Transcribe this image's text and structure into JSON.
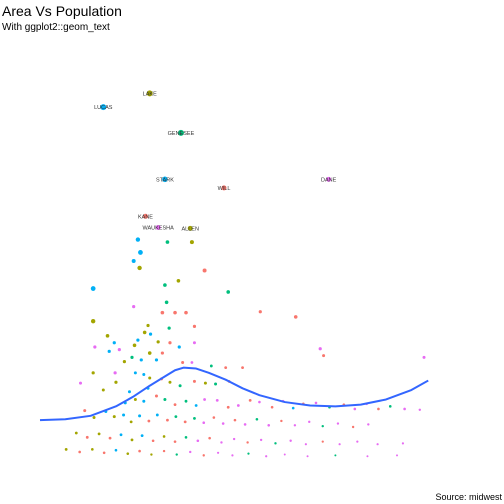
{
  "chart_data": {
    "type": "scatter",
    "title": "Area Vs Population",
    "subtitle": "With ggplot2::geom_text",
    "caption": "Source: midwest",
    "xlabel": "",
    "ylabel": "",
    "legend": "none",
    "grid": false,
    "xlim": [
      0,
      100
    ],
    "ylim": [
      0,
      100
    ],
    "colors": {
      "IL": "#F8766D",
      "IN": "#A3A500",
      "MI": "#00BF7D",
      "OH": "#00B0F6",
      "WI": "#E76BF3",
      "smooth": "#3366FF"
    },
    "labeled_points": [
      {
        "label": "LAKE",
        "x": 26.0,
        "y": 87.6,
        "state": "IN",
        "size": 3.0
      },
      {
        "label": "LUCAS",
        "x": 15.0,
        "y": 84.4,
        "state": "OH",
        "size": 3.0
      },
      {
        "label": "GENESEE",
        "x": 33.4,
        "y": 78.4,
        "state": "MI",
        "size": 3.0
      },
      {
        "label": "STARK",
        "x": 29.6,
        "y": 67.6,
        "state": "OH",
        "size": 2.8
      },
      {
        "label": "WILL",
        "x": 43.6,
        "y": 65.6,
        "state": "IL",
        "size": 2.5
      },
      {
        "label": "DANE",
        "x": 68.4,
        "y": 67.6,
        "state": "WI",
        "size": 2.5
      },
      {
        "label": "KANE",
        "x": 25.0,
        "y": 59.0,
        "state": "IL",
        "size": 2.5
      },
      {
        "label": "WAUKESHA",
        "x": 28.0,
        "y": 56.4,
        "state": "WI",
        "size": 2.5
      },
      {
        "label": "ALLEN",
        "x": 35.6,
        "y": 56.2,
        "state": "IN",
        "size": 2.5
      }
    ],
    "points": [
      {
        "x": 23.2,
        "y": 53.6,
        "state": "OH",
        "size": 2.2
      },
      {
        "x": 23.8,
        "y": 50.6,
        "state": "OH",
        "size": 2.4
      },
      {
        "x": 23.6,
        "y": 47.0,
        "state": "IN",
        "size": 2.2
      },
      {
        "x": 22.2,
        "y": 48.6,
        "state": "OH",
        "size": 2.0
      },
      {
        "x": 30.2,
        "y": 53.0,
        "state": "MI",
        "size": 1.8
      },
      {
        "x": 36.0,
        "y": 53.0,
        "state": "IN",
        "size": 2.0
      },
      {
        "x": 39.0,
        "y": 46.4,
        "state": "IL",
        "size": 2.0
      },
      {
        "x": 29.6,
        "y": 43.0,
        "state": "MI",
        "size": 1.8
      },
      {
        "x": 32.8,
        "y": 44.0,
        "state": "IN",
        "size": 1.8
      },
      {
        "x": 44.6,
        "y": 41.4,
        "state": "MI",
        "size": 1.8
      },
      {
        "x": 12.6,
        "y": 42.2,
        "state": "OH",
        "size": 2.4
      },
      {
        "x": 12.6,
        "y": 34.6,
        "state": "IN",
        "size": 2.2
      },
      {
        "x": 30.0,
        "y": 39.0,
        "state": "MI",
        "size": 1.8
      },
      {
        "x": 29.0,
        "y": 36.6,
        "state": "IL",
        "size": 1.8
      },
      {
        "x": 32.0,
        "y": 36.6,
        "state": "IL",
        "size": 1.8
      },
      {
        "x": 34.6,
        "y": 36.6,
        "state": "IL",
        "size": 1.8
      },
      {
        "x": 22.2,
        "y": 38.0,
        "state": "WI",
        "size": 1.6
      },
      {
        "x": 52.2,
        "y": 36.8,
        "state": "IL",
        "size": 1.6
      },
      {
        "x": 60.6,
        "y": 35.6,
        "state": "IL",
        "size": 1.8
      },
      {
        "x": 36.6,
        "y": 33.4,
        "state": "IL",
        "size": 1.6
      },
      {
        "x": 30.6,
        "y": 33.0,
        "state": "MI",
        "size": 1.6
      },
      {
        "x": 24.8,
        "y": 32.0,
        "state": "IN",
        "size": 1.8
      },
      {
        "x": 25.6,
        "y": 33.6,
        "state": "IN",
        "size": 1.6
      },
      {
        "x": 23.2,
        "y": 30.2,
        "state": "OH",
        "size": 1.6
      },
      {
        "x": 26.2,
        "y": 31.6,
        "state": "OH",
        "size": 1.6
      },
      {
        "x": 22.4,
        "y": 29.0,
        "state": "IN",
        "size": 1.8
      },
      {
        "x": 28.0,
        "y": 29.8,
        "state": "IN",
        "size": 1.6
      },
      {
        "x": 30.8,
        "y": 29.6,
        "state": "IL",
        "size": 1.6
      },
      {
        "x": 33.0,
        "y": 28.6,
        "state": "OH",
        "size": 1.6
      },
      {
        "x": 36.6,
        "y": 29.6,
        "state": "WI",
        "size": 1.5
      },
      {
        "x": 16.0,
        "y": 31.2,
        "state": "IN",
        "size": 1.8
      },
      {
        "x": 17.6,
        "y": 29.6,
        "state": "OH",
        "size": 1.6
      },
      {
        "x": 16.4,
        "y": 27.6,
        "state": "OH",
        "size": 1.6
      },
      {
        "x": 18.8,
        "y": 28.0,
        "state": "WI",
        "size": 1.6
      },
      {
        "x": 13.0,
        "y": 28.6,
        "state": "WI",
        "size": 1.6
      },
      {
        "x": 26.0,
        "y": 27.2,
        "state": "IN",
        "size": 1.8
      },
      {
        "x": 29.0,
        "y": 27.2,
        "state": "IL",
        "size": 1.6
      },
      {
        "x": 27.6,
        "y": 25.6,
        "state": "OH",
        "size": 1.6
      },
      {
        "x": 21.8,
        "y": 26.2,
        "state": "MI",
        "size": 1.6
      },
      {
        "x": 24.0,
        "y": 25.6,
        "state": "OH",
        "size": 1.6
      },
      {
        "x": 20.0,
        "y": 25.2,
        "state": "IN",
        "size": 1.6
      },
      {
        "x": 66.4,
        "y": 28.2,
        "state": "WI",
        "size": 1.6
      },
      {
        "x": 67.2,
        "y": 26.6,
        "state": "IL",
        "size": 1.5
      },
      {
        "x": 91.0,
        "y": 26.2,
        "state": "WI",
        "size": 1.5
      },
      {
        "x": 33.8,
        "y": 25.0,
        "state": "IL",
        "size": 1.5
      },
      {
        "x": 36.0,
        "y": 25.0,
        "state": "WI",
        "size": 1.4
      },
      {
        "x": 40.6,
        "y": 24.2,
        "state": "MI",
        "size": 1.4
      },
      {
        "x": 44.0,
        "y": 23.8,
        "state": "IL",
        "size": 1.4
      },
      {
        "x": 48.0,
        "y": 23.8,
        "state": "IL",
        "size": 1.4
      },
      {
        "x": 12.6,
        "y": 22.6,
        "state": "IN",
        "size": 1.6
      },
      {
        "x": 17.8,
        "y": 22.6,
        "state": "WI",
        "size": 1.6
      },
      {
        "x": 18.0,
        "y": 20.4,
        "state": "IN",
        "size": 1.6
      },
      {
        "x": 22.6,
        "y": 22.6,
        "state": "OH",
        "size": 1.5
      },
      {
        "x": 24.6,
        "y": 22.2,
        "state": "OH",
        "size": 1.5
      },
      {
        "x": 26.0,
        "y": 21.4,
        "state": "IN",
        "size": 1.5
      },
      {
        "x": 25.6,
        "y": 19.0,
        "state": "OH",
        "size": 1.5
      },
      {
        "x": 28.8,
        "y": 21.2,
        "state": "IL",
        "size": 1.5
      },
      {
        "x": 30.8,
        "y": 20.4,
        "state": "IN",
        "size": 1.5
      },
      {
        "x": 33.2,
        "y": 19.6,
        "state": "MI",
        "size": 1.5
      },
      {
        "x": 36.6,
        "y": 20.6,
        "state": "IL",
        "size": 1.5
      },
      {
        "x": 39.2,
        "y": 20.2,
        "state": "IN",
        "size": 1.5
      },
      {
        "x": 41.6,
        "y": 20.0,
        "state": "MI",
        "size": 1.5
      },
      {
        "x": 44.8,
        "y": 20.6,
        "state": "IL",
        "size": 1.4
      },
      {
        "x": 9.6,
        "y": 20.2,
        "state": "WI",
        "size": 1.5
      },
      {
        "x": 15.0,
        "y": 18.6,
        "state": "IN",
        "size": 1.5
      },
      {
        "x": 21.2,
        "y": 18.2,
        "state": "OH",
        "size": 1.5
      },
      {
        "x": 20.2,
        "y": 15.6,
        "state": "OH",
        "size": 1.5
      },
      {
        "x": 22.6,
        "y": 16.4,
        "state": "IN",
        "size": 1.5
      },
      {
        "x": 24.6,
        "y": 16.0,
        "state": "OH",
        "size": 1.5
      },
      {
        "x": 27.6,
        "y": 17.2,
        "state": "IL",
        "size": 1.5
      },
      {
        "x": 29.6,
        "y": 16.4,
        "state": "MI",
        "size": 1.5
      },
      {
        "x": 32.0,
        "y": 15.2,
        "state": "IL",
        "size": 1.4
      },
      {
        "x": 34.6,
        "y": 16.0,
        "state": "MI",
        "size": 1.4
      },
      {
        "x": 37.0,
        "y": 15.0,
        "state": "OH",
        "size": 1.4
      },
      {
        "x": 39.0,
        "y": 16.4,
        "state": "WI",
        "size": 1.4
      },
      {
        "x": 42.0,
        "y": 16.2,
        "state": "WI",
        "size": 1.4
      },
      {
        "x": 44.6,
        "y": 14.6,
        "state": "IL",
        "size": 1.4
      },
      {
        "x": 47.0,
        "y": 15.0,
        "state": "WI",
        "size": 1.4
      },
      {
        "x": 49.8,
        "y": 16.2,
        "state": "IL",
        "size": 1.4
      },
      {
        "x": 52.0,
        "y": 15.8,
        "state": "WI",
        "size": 1.3
      },
      {
        "x": 55.0,
        "y": 14.6,
        "state": "IL",
        "size": 1.3
      },
      {
        "x": 57.6,
        "y": 16.0,
        "state": "WI",
        "size": 1.3
      },
      {
        "x": 60.0,
        "y": 14.4,
        "state": "OH",
        "size": 1.3
      },
      {
        "x": 62.4,
        "y": 15.4,
        "state": "IL",
        "size": 1.3
      },
      {
        "x": 65.4,
        "y": 15.6,
        "state": "WI",
        "size": 1.3
      },
      {
        "x": 68.6,
        "y": 14.6,
        "state": "MI",
        "size": 1.3
      },
      {
        "x": 72.0,
        "y": 15.2,
        "state": "IL",
        "size": 1.3
      },
      {
        "x": 74.6,
        "y": 14.2,
        "state": "WI",
        "size": 1.3
      },
      {
        "x": 77.4,
        "y": 15.4,
        "state": "WI",
        "size": 1.3
      },
      {
        "x": 80.2,
        "y": 14.2,
        "state": "IL",
        "size": 1.3
      },
      {
        "x": 83.0,
        "y": 14.8,
        "state": "MI",
        "size": 1.3
      },
      {
        "x": 86.4,
        "y": 14.2,
        "state": "WI",
        "size": 1.3
      },
      {
        "x": 10.6,
        "y": 13.8,
        "state": "IL",
        "size": 1.5
      },
      {
        "x": 12.8,
        "y": 12.2,
        "state": "IN",
        "size": 1.5
      },
      {
        "x": 15.6,
        "y": 13.6,
        "state": "OH",
        "size": 1.5
      },
      {
        "x": 17.6,
        "y": 12.4,
        "state": "IN",
        "size": 1.5
      },
      {
        "x": 19.8,
        "y": 12.8,
        "state": "OH",
        "size": 1.5
      },
      {
        "x": 21.6,
        "y": 11.2,
        "state": "IN",
        "size": 1.4
      },
      {
        "x": 23.6,
        "y": 12.6,
        "state": "OH",
        "size": 1.5
      },
      {
        "x": 25.8,
        "y": 11.4,
        "state": "IL",
        "size": 1.4
      },
      {
        "x": 27.8,
        "y": 12.8,
        "state": "OH",
        "size": 1.4
      },
      {
        "x": 30.2,
        "y": 11.6,
        "state": "IL",
        "size": 1.4
      },
      {
        "x": 32.2,
        "y": 12.4,
        "state": "MI",
        "size": 1.4
      },
      {
        "x": 34.4,
        "y": 11.2,
        "state": "IL",
        "size": 1.4
      },
      {
        "x": 36.6,
        "y": 12.0,
        "state": "MI",
        "size": 1.4
      },
      {
        "x": 38.8,
        "y": 11.0,
        "state": "WI",
        "size": 1.3
      },
      {
        "x": 41.2,
        "y": 12.2,
        "state": "IL",
        "size": 1.3
      },
      {
        "x": 43.4,
        "y": 10.8,
        "state": "WI",
        "size": 1.3
      },
      {
        "x": 46.2,
        "y": 11.6,
        "state": "IL",
        "size": 1.3
      },
      {
        "x": 48.6,
        "y": 10.6,
        "state": "WI",
        "size": 1.3
      },
      {
        "x": 51.4,
        "y": 11.8,
        "state": "MI",
        "size": 1.3
      },
      {
        "x": 54.2,
        "y": 10.4,
        "state": "WI",
        "size": 1.3
      },
      {
        "x": 57.2,
        "y": 11.4,
        "state": "IL",
        "size": 1.2
      },
      {
        "x": 60.4,
        "y": 10.4,
        "state": "WI",
        "size": 1.2
      },
      {
        "x": 63.8,
        "y": 11.2,
        "state": "WI",
        "size": 1.2
      },
      {
        "x": 67.0,
        "y": 10.2,
        "state": "MI",
        "size": 1.2
      },
      {
        "x": 70.6,
        "y": 10.8,
        "state": "WI",
        "size": 1.2
      },
      {
        "x": 74.2,
        "y": 10.0,
        "state": "IL",
        "size": 1.2
      },
      {
        "x": 77.8,
        "y": 10.6,
        "state": "WI",
        "size": 1.2
      },
      {
        "x": 8.6,
        "y": 8.6,
        "state": "IN",
        "size": 1.4
      },
      {
        "x": 11.2,
        "y": 7.6,
        "state": "IL",
        "size": 1.4
      },
      {
        "x": 14.0,
        "y": 8.4,
        "state": "IN",
        "size": 1.4
      },
      {
        "x": 16.6,
        "y": 7.4,
        "state": "IL",
        "size": 1.4
      },
      {
        "x": 19.2,
        "y": 8.2,
        "state": "OH",
        "size": 1.4
      },
      {
        "x": 21.8,
        "y": 7.0,
        "state": "IN",
        "size": 1.4
      },
      {
        "x": 24.2,
        "y": 8.0,
        "state": "OH",
        "size": 1.4
      },
      {
        "x": 26.8,
        "y": 6.8,
        "state": "IL",
        "size": 1.3
      },
      {
        "x": 29.4,
        "y": 7.8,
        "state": "IN",
        "size": 1.3
      },
      {
        "x": 32.0,
        "y": 6.6,
        "state": "IL",
        "size": 1.3
      },
      {
        "x": 34.6,
        "y": 7.6,
        "state": "MI",
        "size": 1.3
      },
      {
        "x": 37.4,
        "y": 6.8,
        "state": "WI",
        "size": 1.3
      },
      {
        "x": 40.2,
        "y": 7.4,
        "state": "IL",
        "size": 1.3
      },
      {
        "x": 43.0,
        "y": 6.4,
        "state": "WI",
        "size": 1.2
      },
      {
        "x": 46.0,
        "y": 7.2,
        "state": "WI",
        "size": 1.2
      },
      {
        "x": 49.2,
        "y": 6.4,
        "state": "IL",
        "size": 1.2
      },
      {
        "x": 52.4,
        "y": 7.0,
        "state": "WI",
        "size": 1.2
      },
      {
        "x": 55.8,
        "y": 6.2,
        "state": "MI",
        "size": 1.2
      },
      {
        "x": 59.4,
        "y": 6.8,
        "state": "WI",
        "size": 1.2
      },
      {
        "x": 63.0,
        "y": 6.0,
        "state": "WI",
        "size": 1.1
      },
      {
        "x": 67.0,
        "y": 6.6,
        "state": "IL",
        "size": 1.1
      },
      {
        "x": 71.0,
        "y": 6.0,
        "state": "WI",
        "size": 1.1
      },
      {
        "x": 75.2,
        "y": 6.6,
        "state": "WI",
        "size": 1.1
      },
      {
        "x": 80.0,
        "y": 6.0,
        "state": "WI",
        "size": 1.1
      },
      {
        "x": 86.0,
        "y": 6.2,
        "state": "WI",
        "size": 1.1
      },
      {
        "x": 6.2,
        "y": 4.8,
        "state": "IN",
        "size": 1.4
      },
      {
        "x": 9.4,
        "y": 4.2,
        "state": "IL",
        "size": 1.3
      },
      {
        "x": 12.4,
        "y": 4.8,
        "state": "IN",
        "size": 1.3
      },
      {
        "x": 15.2,
        "y": 4.0,
        "state": "IL",
        "size": 1.3
      },
      {
        "x": 18.0,
        "y": 4.6,
        "state": "OH",
        "size": 1.3
      },
      {
        "x": 20.8,
        "y": 3.8,
        "state": "IN",
        "size": 1.3
      },
      {
        "x": 23.6,
        "y": 4.4,
        "state": "IL",
        "size": 1.3
      },
      {
        "x": 26.4,
        "y": 3.6,
        "state": "IN",
        "size": 1.2
      },
      {
        "x": 29.4,
        "y": 4.4,
        "state": "IL",
        "size": 1.2
      },
      {
        "x": 32.4,
        "y": 3.6,
        "state": "MI",
        "size": 1.2
      },
      {
        "x": 35.6,
        "y": 4.2,
        "state": "WI",
        "size": 1.2
      },
      {
        "x": 38.8,
        "y": 3.4,
        "state": "IL",
        "size": 1.2
      },
      {
        "x": 42.2,
        "y": 4.0,
        "state": "WI",
        "size": 1.1
      },
      {
        "x": 45.6,
        "y": 3.4,
        "state": "WI",
        "size": 1.1
      },
      {
        "x": 49.4,
        "y": 3.8,
        "state": "MI",
        "size": 1.1
      },
      {
        "x": 53.6,
        "y": 3.2,
        "state": "WI",
        "size": 1.1
      },
      {
        "x": 58.0,
        "y": 3.6,
        "state": "WI",
        "size": 1.0
      },
      {
        "x": 63.4,
        "y": 3.2,
        "state": "WI",
        "size": 1.0
      },
      {
        "x": 70.0,
        "y": 3.4,
        "state": "MI",
        "size": 1.0
      },
      {
        "x": 77.6,
        "y": 3.2,
        "state": "WI",
        "size": 1.0
      },
      {
        "x": 84.6,
        "y": 3.4,
        "state": "WI",
        "size": 1.0
      },
      {
        "x": 90.0,
        "y": 14.0,
        "state": "WI",
        "size": 1.2
      }
    ],
    "smooth_line": {
      "x": [
        0,
        6,
        12,
        18,
        22,
        26,
        30,
        32,
        34,
        37,
        40,
        44,
        48,
        52,
        58,
        64,
        70,
        76,
        82,
        88,
        92
      ],
      "y": [
        11.6,
        11.8,
        12.6,
        14.8,
        17.0,
        19.6,
        22.0,
        23.2,
        23.8,
        23.6,
        22.6,
        21.0,
        19.0,
        17.4,
        15.8,
        15.0,
        14.8,
        15.2,
        16.4,
        18.6,
        20.8
      ]
    }
  }
}
